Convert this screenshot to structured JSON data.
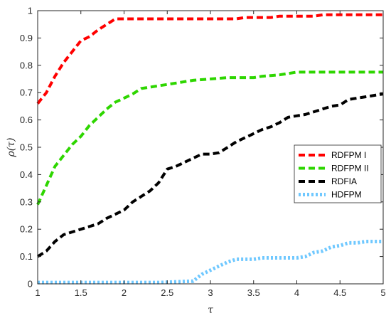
{
  "chart_data": {
    "type": "line",
    "title": "",
    "xlabel": "τ",
    "ylabel": "ρ(τ)",
    "xlim": [
      1,
      5
    ],
    "ylim": [
      0,
      1
    ],
    "xticks": [
      1,
      1.5,
      2,
      2.5,
      3,
      3.5,
      4,
      4.5,
      5
    ],
    "yticks": [
      0,
      0.1,
      0.2,
      0.3,
      0.4,
      0.5,
      0.6,
      0.7,
      0.8,
      0.9,
      1
    ],
    "xtick_labels": [
      "1",
      "1.5",
      "2",
      "2.5",
      "3",
      "3.5",
      "4",
      "4.5",
      "5"
    ],
    "ytick_labels": [
      "0",
      "0.1",
      "0.2",
      "0.3",
      "0.4",
      "0.5",
      "0.6",
      "0.7",
      "0.8",
      "0.9",
      "1"
    ],
    "grid": false,
    "legend_position": "center-right",
    "series": [
      {
        "name": "RDFPM I",
        "color": "#ff0000",
        "style": "dashed",
        "points": [
          [
            1,
            0.66
          ],
          [
            1.1,
            0.7
          ],
          [
            1.2,
            0.76
          ],
          [
            1.3,
            0.81
          ],
          [
            1.4,
            0.85
          ],
          [
            1.5,
            0.89
          ],
          [
            1.6,
            0.905
          ],
          [
            1.7,
            0.93
          ],
          [
            1.8,
            0.95
          ],
          [
            1.9,
            0.97
          ],
          [
            2,
            0.97
          ],
          [
            2.5,
            0.97
          ],
          [
            3,
            0.97
          ],
          [
            3.3,
            0.97
          ],
          [
            3.4,
            0.975
          ],
          [
            3.7,
            0.975
          ],
          [
            3.8,
            0.98
          ],
          [
            4.2,
            0.98
          ],
          [
            4.3,
            0.985
          ],
          [
            5,
            0.985
          ]
        ]
      },
      {
        "name": "RDFPM II",
        "color": "#2ed600",
        "style": "dashed",
        "points": [
          [
            1,
            0.29
          ],
          [
            1.1,
            0.36
          ],
          [
            1.2,
            0.43
          ],
          [
            1.3,
            0.47
          ],
          [
            1.4,
            0.51
          ],
          [
            1.5,
            0.54
          ],
          [
            1.6,
            0.58
          ],
          [
            1.7,
            0.61
          ],
          [
            1.8,
            0.64
          ],
          [
            1.9,
            0.665
          ],
          [
            2,
            0.68
          ],
          [
            2.1,
            0.695
          ],
          [
            2.2,
            0.715
          ],
          [
            2.4,
            0.725
          ],
          [
            2.6,
            0.735
          ],
          [
            2.8,
            0.745
          ],
          [
            3,
            0.75
          ],
          [
            3.2,
            0.755
          ],
          [
            3.5,
            0.755
          ],
          [
            3.6,
            0.76
          ],
          [
            3.8,
            0.765
          ],
          [
            4,
            0.775
          ],
          [
            5,
            0.775
          ]
        ]
      },
      {
        "name": "RDFIA",
        "color": "#000000",
        "style": "dashed",
        "points": [
          [
            1,
            0.1
          ],
          [
            1.1,
            0.12
          ],
          [
            1.2,
            0.155
          ],
          [
            1.3,
            0.18
          ],
          [
            1.5,
            0.2
          ],
          [
            1.7,
            0.22
          ],
          [
            1.8,
            0.24
          ],
          [
            1.9,
            0.255
          ],
          [
            2,
            0.27
          ],
          [
            2.1,
            0.3
          ],
          [
            2.2,
            0.32
          ],
          [
            2.3,
            0.34
          ],
          [
            2.4,
            0.37
          ],
          [
            2.5,
            0.42
          ],
          [
            2.6,
            0.43
          ],
          [
            2.7,
            0.445
          ],
          [
            2.8,
            0.46
          ],
          [
            2.9,
            0.475
          ],
          [
            3,
            0.475
          ],
          [
            3.1,
            0.48
          ],
          [
            3.2,
            0.5
          ],
          [
            3.3,
            0.52
          ],
          [
            3.4,
            0.535
          ],
          [
            3.5,
            0.55
          ],
          [
            3.6,
            0.565
          ],
          [
            3.7,
            0.575
          ],
          [
            3.8,
            0.59
          ],
          [
            3.9,
            0.61
          ],
          [
            4,
            0.615
          ],
          [
            4.1,
            0.62
          ],
          [
            4.2,
            0.63
          ],
          [
            4.3,
            0.64
          ],
          [
            4.4,
            0.65
          ],
          [
            4.5,
            0.655
          ],
          [
            4.6,
            0.675
          ],
          [
            4.7,
            0.68
          ],
          [
            4.8,
            0.685
          ],
          [
            4.9,
            0.69
          ],
          [
            5,
            0.695
          ]
        ]
      },
      {
        "name": "HDFPM",
        "color": "#6fc8ff",
        "style": "dotted",
        "points": [
          [
            1,
            0.005
          ],
          [
            2.4,
            0.005
          ],
          [
            2.8,
            0.01
          ],
          [
            2.9,
            0.035
          ],
          [
            3,
            0.05
          ],
          [
            3.1,
            0.065
          ],
          [
            3.2,
            0.08
          ],
          [
            3.3,
            0.09
          ],
          [
            3.5,
            0.09
          ],
          [
            3.6,
            0.095
          ],
          [
            4,
            0.095
          ],
          [
            4.1,
            0.1
          ],
          [
            4.2,
            0.115
          ],
          [
            4.3,
            0.12
          ],
          [
            4.4,
            0.135
          ],
          [
            4.5,
            0.14
          ],
          [
            4.6,
            0.15
          ],
          [
            4.7,
            0.15
          ],
          [
            4.8,
            0.155
          ],
          [
            5,
            0.155
          ]
        ]
      }
    ]
  }
}
